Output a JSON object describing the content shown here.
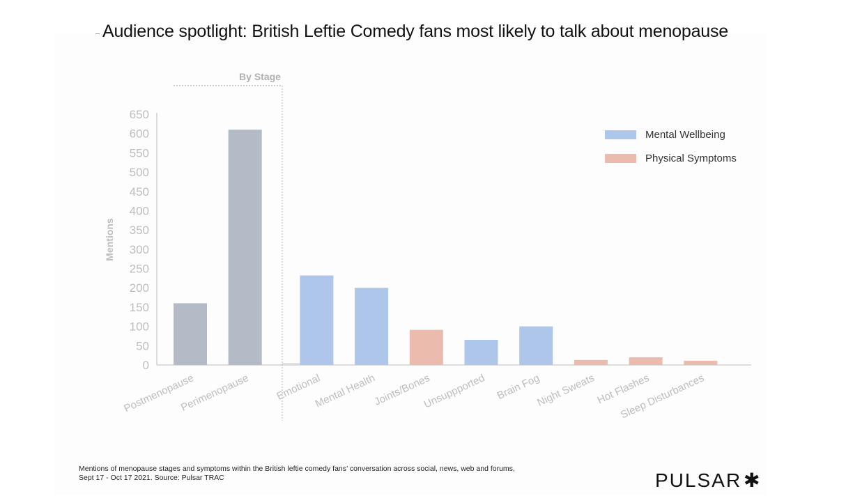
{
  "header": {
    "title": "Audience spotlight: British Leftie Comedy fans most likely to talk about menopause"
  },
  "chart_data": {
    "type": "bar",
    "title": "Audience spotlight: British Leftie Comedy fans most likely to talk about menopause",
    "xlabel": "",
    "ylabel": "Mentions",
    "ylim": [
      0,
      650
    ],
    "ytick_step": 50,
    "grid": false,
    "group_label": "By Stage",
    "legend_position": "top-right",
    "legend": [
      {
        "name": "Mental Wellbeing",
        "color": "#aec6ea"
      },
      {
        "name": "Physical Symptoms",
        "color": "#ebbcae"
      }
    ],
    "stage_color": "#b4bbc6",
    "categories": [
      "Postmenopause",
      "Perimenopause",
      "Emotional",
      "Mental Health",
      "Joints/Bones",
      "Unsuppported",
      "Brain Fog",
      "Night Sweats",
      "Hot Flashes",
      "Sleep Disturbances"
    ],
    "values": [
      160,
      610,
      232,
      200,
      91,
      65,
      100,
      13,
      20,
      11
    ],
    "groups": [
      "stage",
      "stage",
      "mental",
      "mental",
      "physical",
      "mental",
      "mental",
      "physical",
      "physical",
      "physical"
    ]
  },
  "footer": {
    "note_line1": "Mentions of menopause stages and symptoms within the British leftie comedy fans’ conversation across social, news, web and forums,",
    "note_line2": "Sept 17 - Oct 17 2021. Source: Pulsar TRAC",
    "brand": "PULSAR",
    "brand_mark": "✱"
  }
}
